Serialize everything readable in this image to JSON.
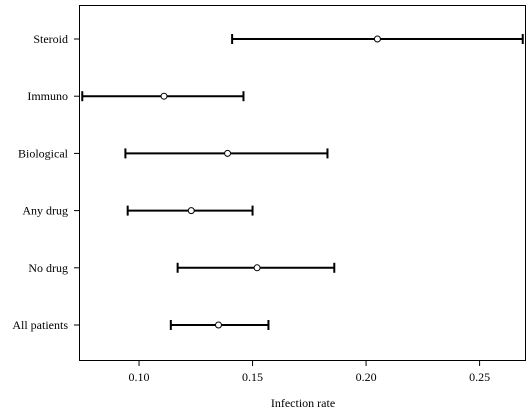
{
  "chart_data": {
    "type": "forest",
    "xlabel": "Infection rate",
    "ylabel": "",
    "xlim": [
      0.074,
      0.27
    ],
    "x_ticks": [
      0.1,
      0.15,
      0.2,
      0.25
    ],
    "x_tick_labels": [
      "0.10",
      "0.15",
      "0.20",
      "0.25"
    ],
    "categories": [
      "Steroid",
      "Immuno",
      "Biological",
      "Any drug",
      "No drug",
      "All patients"
    ],
    "estimates": [
      0.205,
      0.111,
      0.139,
      0.123,
      0.152,
      0.135
    ],
    "lower": [
      0.141,
      0.075,
      0.094,
      0.095,
      0.117,
      0.114
    ],
    "upper": [
      0.269,
      0.146,
      0.183,
      0.15,
      0.186,
      0.157
    ],
    "grid": false
  }
}
